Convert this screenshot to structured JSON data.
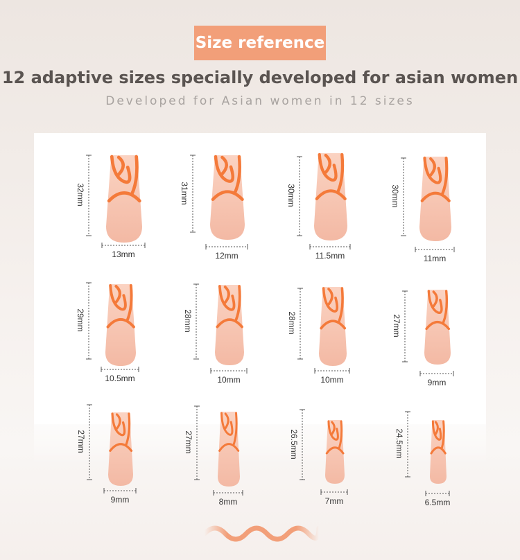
{
  "badge": "Size reference",
  "headline": "12 adaptive sizes specially developed for asian women",
  "subline": "Developed for Asian women in 12 sizes",
  "accent": "#f47a3a",
  "nails": [
    {
      "length": "32mm",
      "width": "13mm"
    },
    {
      "length": "31mm",
      "width": "12mm"
    },
    {
      "length": "30mm",
      "width": "11.5mm"
    },
    {
      "length": "30mm",
      "width": "11mm"
    },
    {
      "length": "29mm",
      "width": "10.5mm"
    },
    {
      "length": "28mm",
      "width": "10mm"
    },
    {
      "length": "28mm",
      "width": "10mm"
    },
    {
      "length": "27mm",
      "width": "9mm"
    },
    {
      "length": "27mm",
      "width": "9mm"
    },
    {
      "length": "27mm",
      "width": "8mm"
    },
    {
      "length": "26.5mm",
      "width": "7mm"
    },
    {
      "length": "24.5mm",
      "width": "6.5mm"
    }
  ]
}
